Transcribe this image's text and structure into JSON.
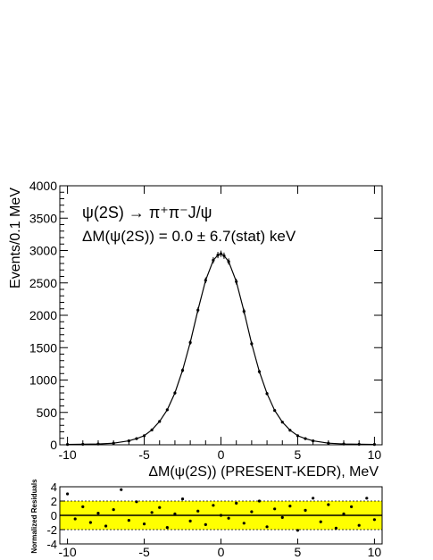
{
  "chart_data": [
    {
      "type": "scatter",
      "panel": "main",
      "annotation_line1": "ψ(2S) → π⁺π⁻J/ψ",
      "annotation_line2": "ΔM(ψ(2S)) = 0.0 ± 6.7(stat) keV",
      "xlabel": "ΔM(ψ(2S)) (PRESENT-KEDR), MeV",
      "ylabel": "Events/0.1 MeV",
      "xlim": [
        -10.5,
        10.5
      ],
      "ylim": [
        0,
        4000
      ],
      "x_ticks": [
        -10,
        -5,
        0,
        5,
        10
      ],
      "y_ticks": [
        0,
        500,
        1000,
        1500,
        2000,
        2500,
        3000,
        3500,
        4000
      ],
      "grid": false,
      "series": [
        {
          "marker": "points with error bars + fit curve",
          "x": [
            -10.0,
            -9.0,
            -8.0,
            -7.0,
            -6.0,
            -5.5,
            -5.0,
            -4.5,
            -4.0,
            -3.5,
            -3.0,
            -2.5,
            -2.0,
            -1.5,
            -1.0,
            -0.5,
            -0.2,
            0.0,
            0.2,
            0.5,
            1.0,
            1.5,
            2.0,
            2.5,
            3.0,
            3.5,
            4.0,
            4.5,
            5.0,
            5.5,
            6.0,
            7.0,
            8.0,
            9.0,
            10.0
          ],
          "y": [
            5,
            8,
            12,
            25,
            60,
            95,
            140,
            230,
            360,
            540,
            800,
            1150,
            1580,
            2080,
            2540,
            2850,
            2930,
            2950,
            2920,
            2830,
            2520,
            2060,
            1560,
            1130,
            790,
            530,
            350,
            225,
            140,
            95,
            60,
            25,
            12,
            8,
            5
          ]
        }
      ]
    },
    {
      "type": "scatter",
      "panel": "residuals",
      "ylabel": "Normalized Residuals",
      "xlim": [
        -10.5,
        10.5
      ],
      "ylim": [
        -4,
        4
      ],
      "x_ticks": [
        -10,
        -5,
        0,
        5,
        10
      ],
      "y_ticks": [
        -4,
        -2,
        0,
        2,
        4
      ],
      "band": [
        -2,
        2
      ],
      "band_color": "#ffff00",
      "series": [
        {
          "x": [
            -10.0,
            -9.5,
            -9.0,
            -8.5,
            -8.0,
            -7.5,
            -7.0,
            -6.5,
            -6.0,
            -5.5,
            -5.0,
            -4.5,
            -4.0,
            -3.5,
            -3.0,
            -2.5,
            -2.0,
            -1.5,
            -1.0,
            -0.5,
            0.0,
            0.5,
            1.0,
            1.5,
            2.0,
            2.5,
            3.0,
            3.5,
            4.0,
            4.5,
            5.0,
            5.5,
            6.0,
            6.5,
            7.0,
            7.5,
            8.0,
            8.5,
            9.0,
            9.5,
            10.0
          ],
          "y": [
            3.0,
            -0.5,
            1.2,
            -1.0,
            0.3,
            -1.5,
            0.8,
            3.6,
            -0.7,
            1.9,
            -1.2,
            0.4,
            1.1,
            -1.7,
            0.2,
            2.3,
            -0.8,
            0.6,
            -1.3,
            1.4,
            0.0,
            -0.4,
            1.7,
            -1.1,
            0.5,
            2.0,
            -1.6,
            0.9,
            -0.3,
            1.3,
            -2.1,
            0.7,
            2.4,
            -0.9,
            1.5,
            -1.8,
            0.2,
            1.2,
            -1.4,
            2.4,
            -0.6
          ]
        }
      ]
    }
  ]
}
